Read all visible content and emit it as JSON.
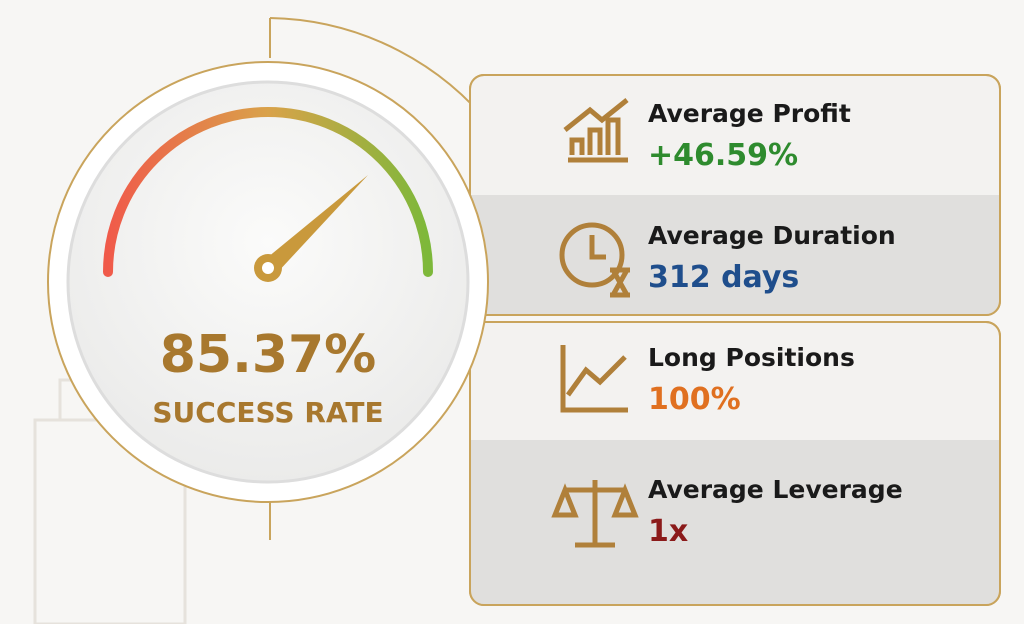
{
  "gauge": {
    "value": "85.37%",
    "label": "SUCCESS RATE"
  },
  "stats": [
    {
      "title": "Average Profit",
      "value": "+46.59%",
      "color": "#2e8b2e"
    },
    {
      "title": "Average Duration",
      "value": "312 days",
      "color": "#1f4e8c"
    },
    {
      "title": "Long Positions",
      "value": "100%",
      "color": "#e07020"
    },
    {
      "title": "Average Leverage",
      "value": "1x",
      "color": "#8b1a1a"
    }
  ]
}
